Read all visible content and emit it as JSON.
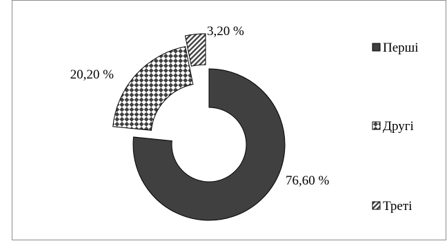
{
  "chart_data": {
    "type": "pie",
    "variant": "exploded-doughnut",
    "categories": [
      "Перші",
      "Другі",
      "Треті"
    ],
    "values": [
      76.6,
      20.2,
      3.2
    ],
    "data_labels": [
      "76,60 %",
      "20,20 %",
      "3,20 %"
    ],
    "legend_position": "right",
    "series_styles": [
      {
        "fill": "solid",
        "color": "#404040"
      },
      {
        "fill": "checkerboard-diamond",
        "color": "#404040"
      },
      {
        "fill": "diagonal-stripes",
        "color": "#404040"
      }
    ]
  }
}
